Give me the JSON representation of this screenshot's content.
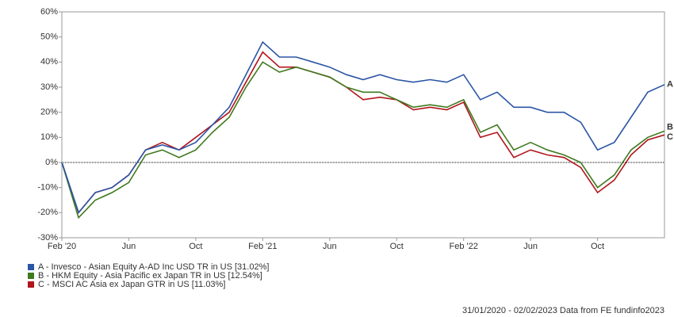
{
  "chart_data": {
    "type": "line",
    "x": [
      "2020-02",
      "2020-03",
      "2020-04",
      "2020-05",
      "2020-06",
      "2020-07",
      "2020-08",
      "2020-09",
      "2020-10",
      "2020-11",
      "2020-12",
      "2021-01",
      "2021-02",
      "2021-03",
      "2021-04",
      "2021-05",
      "2021-06",
      "2021-07",
      "2021-08",
      "2021-09",
      "2021-10",
      "2021-11",
      "2021-12",
      "2022-01",
      "2022-02",
      "2022-03",
      "2022-04",
      "2022-05",
      "2022-06",
      "2022-07",
      "2022-08",
      "2022-09",
      "2022-10",
      "2022-11",
      "2022-12",
      "2023-01",
      "2023-02"
    ],
    "xlim": [
      "2020-02",
      "2023-02"
    ],
    "xticks": [
      {
        "value": "2020-02",
        "label": "Feb '20"
      },
      {
        "value": "2020-06",
        "label": "Jun"
      },
      {
        "value": "2020-10",
        "label": "Oct"
      },
      {
        "value": "2021-02",
        "label": "Feb '21"
      },
      {
        "value": "2021-06",
        "label": "Jun"
      },
      {
        "value": "2021-10",
        "label": "Oct"
      },
      {
        "value": "2022-02",
        "label": "Feb '22"
      },
      {
        "value": "2022-06",
        "label": "Jun"
      },
      {
        "value": "2022-10",
        "label": "Oct"
      }
    ],
    "ylim": [
      -30,
      60
    ],
    "yticks": [
      {
        "value": -30,
        "label": "-30%"
      },
      {
        "value": -20,
        "label": "-20%"
      },
      {
        "value": -10,
        "label": "-10%"
      },
      {
        "value": 0,
        "label": "0%"
      },
      {
        "value": 10,
        "label": "10%"
      },
      {
        "value": 20,
        "label": "20%"
      },
      {
        "value": 30,
        "label": "30%"
      },
      {
        "value": 40,
        "label": "40%"
      },
      {
        "value": 50,
        "label": "50%"
      },
      {
        "value": 60,
        "label": "60%"
      }
    ],
    "series": [
      {
        "name": "A - Invesco - Asian Equity A-AD Inc USD TR in US [31.02%]",
        "label": "A",
        "color": "#2b55a5",
        "values": [
          0,
          -20,
          -12,
          -10,
          -5,
          5,
          7,
          5,
          8,
          15,
          22,
          35,
          48,
          42,
          42,
          40,
          38,
          35,
          33,
          35,
          33,
          32,
          33,
          32,
          35,
          25,
          28,
          22,
          22,
          20,
          20,
          16,
          5,
          8,
          18,
          28,
          31
        ]
      },
      {
        "name": "B - HKM Equity - Asia Pacific ex Japan TR in US [12.54%]",
        "label": "B",
        "color": "#3f7a1e",
        "values": [
          0,
          -22,
          -15,
          -12,
          -8,
          3,
          5,
          2,
          5,
          12,
          18,
          30,
          40,
          36,
          38,
          36,
          34,
          30,
          28,
          28,
          25,
          22,
          23,
          22,
          25,
          12,
          15,
          5,
          8,
          5,
          3,
          0,
          -10,
          -5,
          5,
          10,
          12.5
        ]
      },
      {
        "name": "C - MSCI AC Asia ex Japan GTR in US [11.03%]",
        "label": "C",
        "color": "#b0161c",
        "values": [
          0,
          -20,
          -12,
          -10,
          -5,
          5,
          8,
          5,
          10,
          15,
          20,
          32,
          44,
          38,
          38,
          36,
          34,
          30,
          25,
          26,
          25,
          21,
          22,
          21,
          24,
          10,
          12,
          2,
          5,
          3,
          2,
          -2,
          -12,
          -7,
          3,
          9,
          11
        ]
      }
    ],
    "footer": "31/01/2020 - 02/02/2023 Data from FE fundinfo2023"
  }
}
